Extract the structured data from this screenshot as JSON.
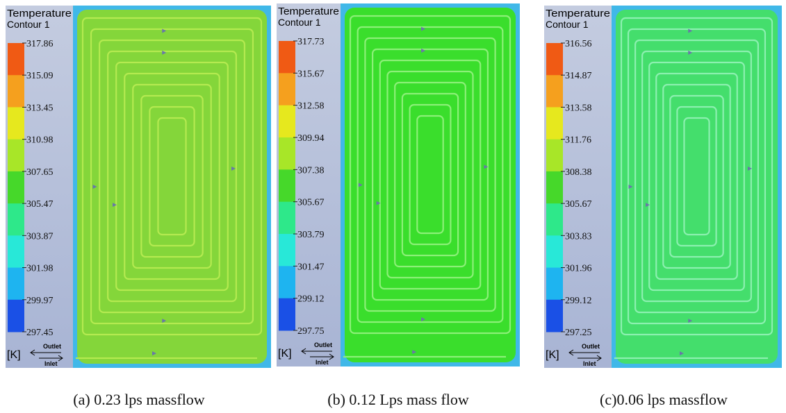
{
  "panels": [
    {
      "legend": {
        "title": "Temperature",
        "subtitle": "Contour 1",
        "ticks": [
          "317.86",
          "315.09",
          "313.45",
          "310.98",
          "307.65",
          "305.47",
          "303.87",
          "301.98",
          "299.97",
          "297.45"
        ],
        "unit": "[K]",
        "outlet": "Outlet",
        "inlet": "Inlet"
      },
      "caption": "(a)  0.23 lps massflow"
    },
    {
      "legend": {
        "title": "Temperature",
        "subtitle": "Contour 1",
        "ticks": [
          "317.73",
          "315.67",
          "312.58",
          "309.94",
          "307.38",
          "305.67",
          "303.79",
          "301.47",
          "299.12",
          "297.75"
        ],
        "unit": "[K]",
        "outlet": "Outlet",
        "inlet": "Inlet"
      },
      "caption": "(b) 0.12 Lps mass flow"
    },
    {
      "legend": {
        "title": "Temperature",
        "subtitle": "Contour 1",
        "ticks": [
          "316.56",
          "314.87",
          "313.58",
          "311.76",
          "308.38",
          "305.67",
          "303.83",
          "301.96",
          "299.12",
          "297.25"
        ],
        "unit": "[K]",
        "outlet": "Outlet",
        "inlet": "Inlet"
      },
      "caption": "(c)0.06 lps  massflow"
    }
  ]
}
